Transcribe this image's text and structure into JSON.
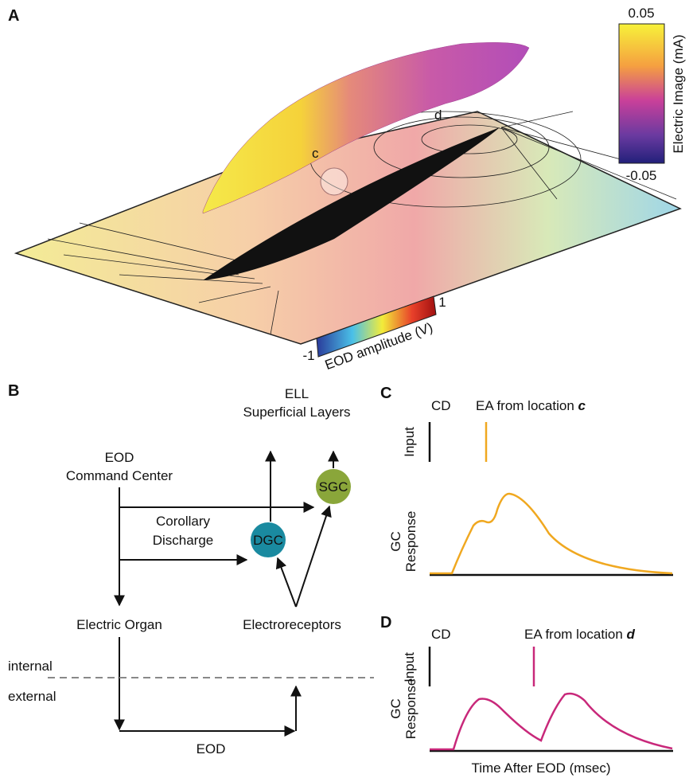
{
  "panel_a": {
    "label": "A",
    "region_c": "c",
    "region_d": "d",
    "colorbar_image": {
      "title": "Electric Image (mA)",
      "max": "0.05",
      "min": "-0.05"
    },
    "colorbar_eod": {
      "title": "EOD amplitude (V)",
      "max": "1",
      "min": "-1"
    }
  },
  "panel_b": {
    "label": "B",
    "ell": "ELL",
    "ell_layers": "Superficial Layers",
    "eod_center": "EOD",
    "eod_center_2": "Command Center",
    "corollary": "Corollary",
    "corollary_2": "Discharge",
    "dgc": "DGC",
    "sgc": "SGC",
    "electric_organ": "Electric Organ",
    "electroreceptors": "Electroreceptors",
    "internal": "internal",
    "external": "external",
    "eod": "EOD"
  },
  "panel_c": {
    "label": "C",
    "cd": "CD",
    "ea": "EA from location ",
    "ea_loc": "c",
    "input": "Input",
    "response_1": "GC",
    "response_2": "Response"
  },
  "panel_d": {
    "label": "D",
    "cd": "CD",
    "ea": "EA from location ",
    "ea_loc": "d",
    "input": "Input",
    "response_1": "GC",
    "response_2": "Response",
    "x_label": "Time After EOD (msec)"
  }
}
